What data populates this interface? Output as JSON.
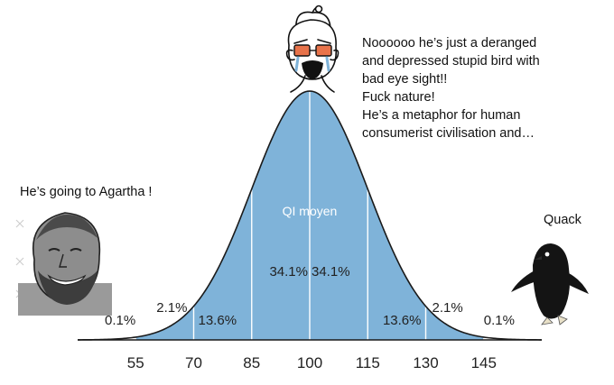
{
  "chart_data": {
    "type": "area",
    "title": "",
    "xlabel": "",
    "ylabel": "",
    "curve_label": "QI moyen",
    "distribution": {
      "mean": 100,
      "sd": 15
    },
    "xlim": [
      40,
      160
    ],
    "x_ticks": [
      55,
      70,
      85,
      100,
      115,
      130,
      145
    ],
    "segments": [
      {
        "from": 40,
        "to": 55,
        "percent": "0.1%"
      },
      {
        "from": 55,
        "to": 70,
        "percent": "2.1%"
      },
      {
        "from": 70,
        "to": 85,
        "percent": "13.6%"
      },
      {
        "from": 85,
        "to": 100,
        "percent": "34.1%"
      },
      {
        "from": 100,
        "to": 115,
        "percent": "34.1%"
      },
      {
        "from": 115,
        "to": 130,
        "percent": "13.6%"
      },
      {
        "from": 130,
        "to": 145,
        "percent": "2.1%"
      },
      {
        "from": 145,
        "to": 160,
        "percent": "0.1%"
      }
    ],
    "colors": {
      "fill": "#7fb3d9",
      "line": "#1a1a1a",
      "divider": "#ffffff"
    }
  },
  "captions": {
    "top_lines": [
      "Noooooo he’s just a deranged",
      "and depressed stupid bird with",
      "bad eye sight!!",
      "Fuck nature!",
      "He’s a  metaphor for  human",
      "consumerist civilisation and…"
    ],
    "left": "He’s going to Agartha !",
    "right": "Quack"
  },
  "illustrations": {
    "top": "crying-soyjak-icon",
    "left": "grinning-bearded-man-icon",
    "right": "penguin-icon"
  }
}
